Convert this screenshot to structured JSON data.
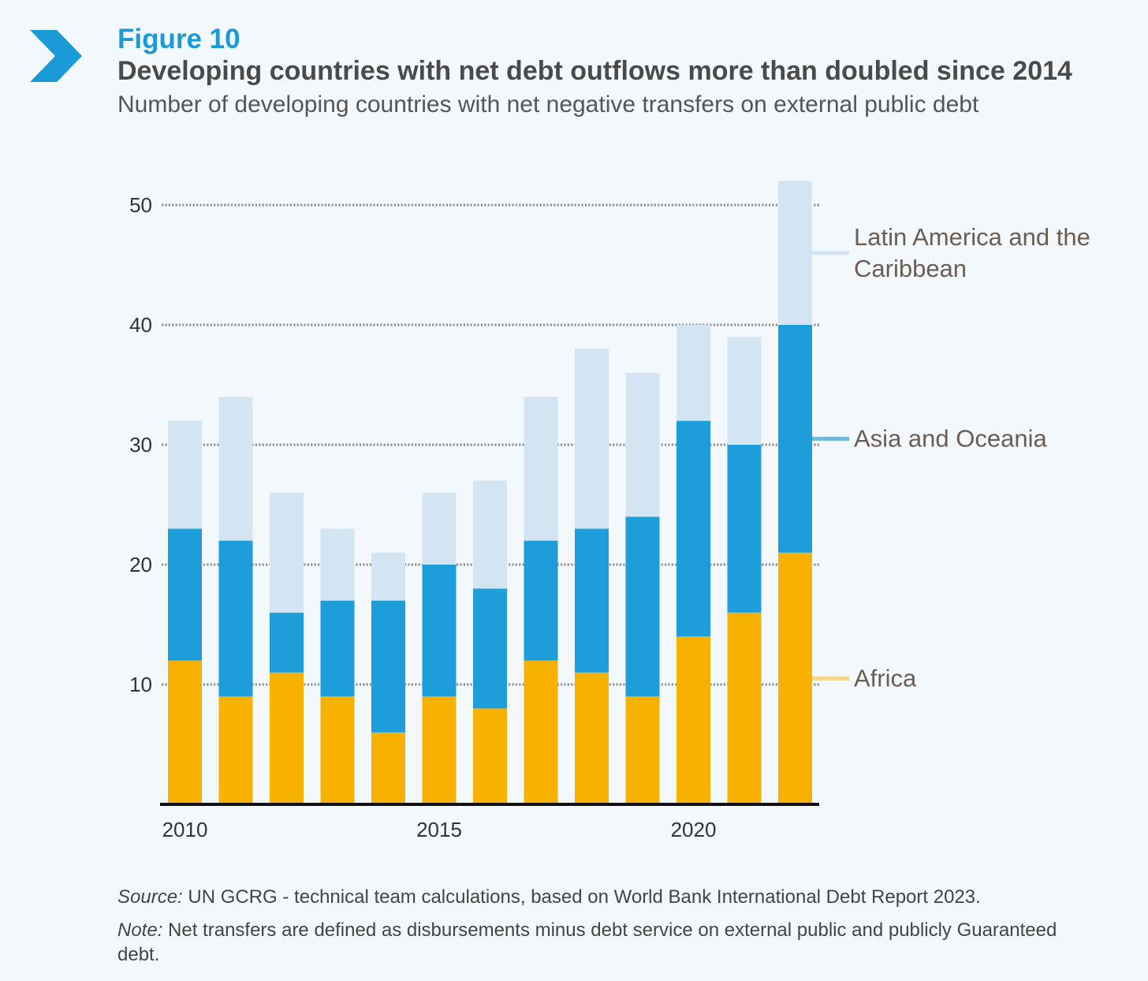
{
  "figure": {
    "label": "Figure 10",
    "title": "Developing countries with net debt outflows more than doubled since 2014",
    "subtitle": "Number of developing countries with net negative transfers on external public debt",
    "icon": "chevron-right-icon"
  },
  "chart_data": {
    "type": "bar",
    "stacked": true,
    "categories": [
      "2010",
      "2011",
      "2012",
      "2013",
      "2014",
      "2015",
      "2016",
      "2017",
      "2018",
      "2019",
      "2020",
      "2021",
      "2022"
    ],
    "x_tick_labels": [
      "2010",
      "2015",
      "2020"
    ],
    "y_ticks": [
      10,
      20,
      30,
      40,
      50
    ],
    "ylim": [
      0,
      53
    ],
    "grid": "horizontal dotted",
    "legend_placement": "right, labels aligned to series",
    "series": [
      {
        "name": "Africa",
        "color": "#f7b100",
        "legend_color": "#f5d68a",
        "values": [
          12,
          9,
          11,
          9,
          6,
          9,
          8,
          12,
          11,
          9,
          14,
          16,
          21
        ]
      },
      {
        "name": "Asia and Oceania",
        "color": "#1d9dd9",
        "legend_color": "#6fbad9",
        "values": [
          11,
          13,
          5,
          8,
          11,
          11,
          10,
          10,
          12,
          15,
          18,
          14,
          19
        ]
      },
      {
        "name": "Latin America and the Caribbean",
        "color": "#d3e5f3",
        "legend_color": "#d3e5f3",
        "values": [
          9,
          12,
          10,
          6,
          4,
          6,
          9,
          12,
          15,
          12,
          8,
          9,
          12
        ]
      }
    ],
    "legend": [
      {
        "series": 2,
        "lines": [
          "Latin America and the",
          "Caribbean"
        ]
      },
      {
        "series": 1,
        "lines": [
          "Asia and Oceania"
        ]
      },
      {
        "series": 0,
        "lines": [
          "Africa"
        ]
      }
    ]
  },
  "footer": {
    "source_label": "Source:",
    "source_text": " UN GCRG - technical team calculations, based on World Bank International Debt Report 2023.",
    "note_label": "Note:",
    "note_text": " Net transfers are defined as disbursements minus debt service on external public and publicly Guaranteed debt."
  }
}
